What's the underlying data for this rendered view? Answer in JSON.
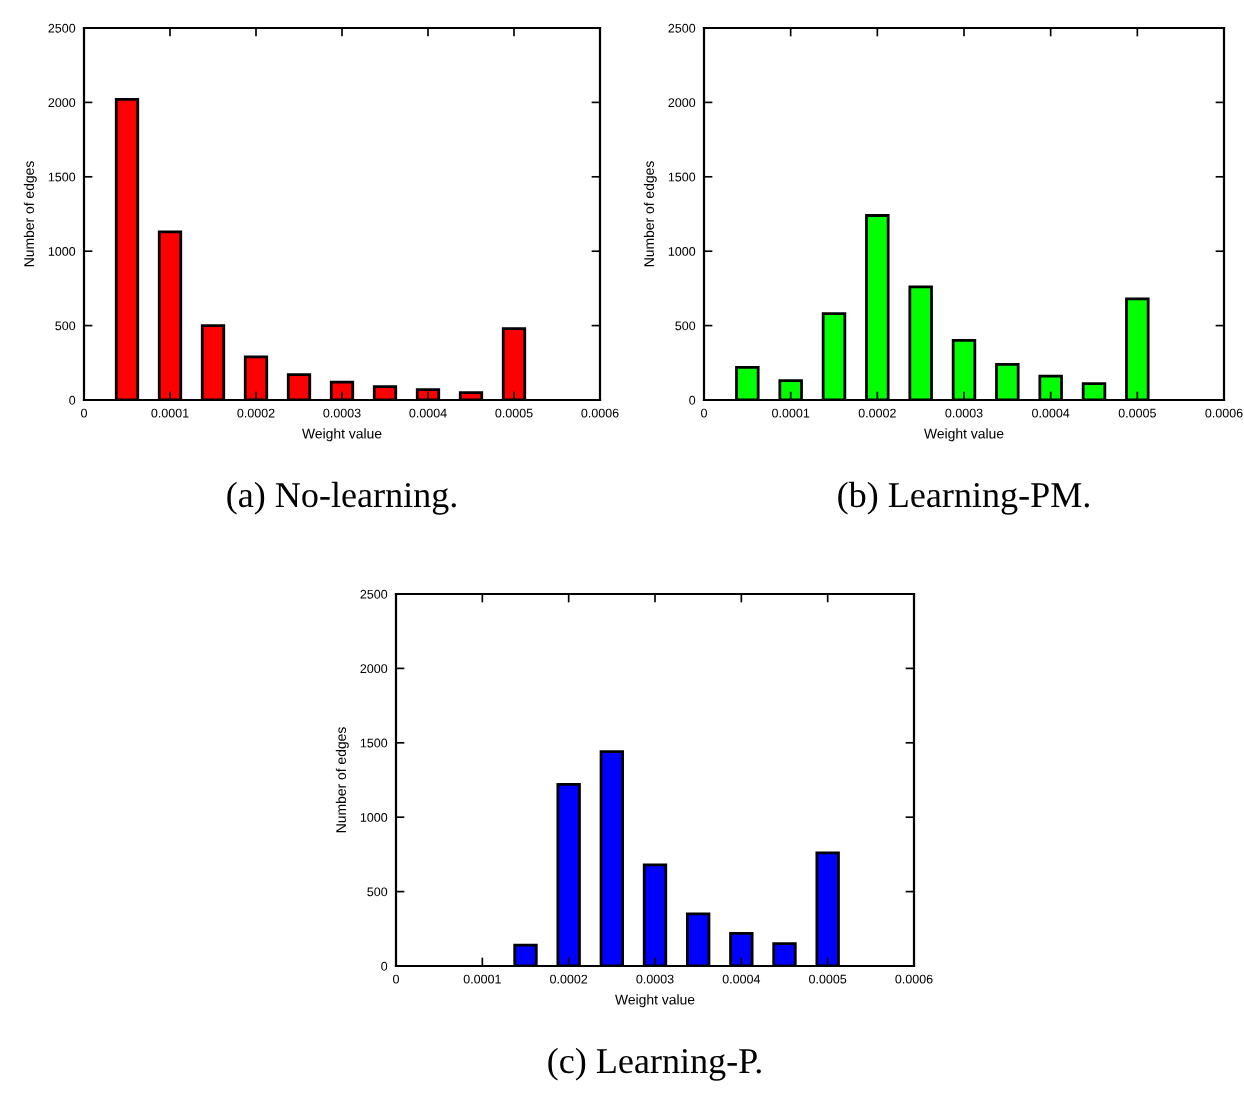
{
  "chart_data": [
    {
      "type": "bar",
      "xlabel": "Weight value",
      "ylabel": "Number of edges",
      "annotations": [
        "(a) No-learning."
      ],
      "x": [
        5e-05,
        0.0001,
        0.00015,
        0.0002,
        0.00025,
        0.0003,
        0.00035,
        0.0004,
        0.00045,
        0.0005
      ],
      "color": "#ff0000",
      "values": [
        2020,
        1130,
        500,
        290,
        170,
        120,
        90,
        70,
        50,
        480
      ],
      "xlim": [
        0,
        0.0006
      ],
      "xticks": [
        0,
        0.0001,
        0.0002,
        0.0003,
        0.0004,
        0.0005,
        0.0006
      ],
      "ylim": [
        0,
        2500
      ],
      "yticks": [
        0,
        500,
        1000,
        1500,
        2000,
        2500
      ],
      "grid": false,
      "legend": false
    },
    {
      "type": "bar",
      "xlabel": "Weight value",
      "ylabel": "Number of edges",
      "annotations": [
        "(b) Learning-PM."
      ],
      "x": [
        5e-05,
        0.0001,
        0.00015,
        0.0002,
        0.00025,
        0.0003,
        0.00035,
        0.0004,
        0.00045,
        0.0005
      ],
      "color": "#00ff00",
      "values": [
        220,
        130,
        580,
        1240,
        760,
        400,
        240,
        160,
        110,
        680
      ],
      "xlim": [
        0,
        0.0006
      ],
      "xticks": [
        0,
        0.0001,
        0.0002,
        0.0003,
        0.0004,
        0.0005,
        0.0006
      ],
      "ylim": [
        0,
        2500
      ],
      "yticks": [
        0,
        500,
        1000,
        1500,
        2000,
        2500
      ],
      "grid": false,
      "legend": false
    },
    {
      "type": "bar",
      "xlabel": "Weight value",
      "ylabel": "Number of edges",
      "annotations": [
        "(c) Learning-P."
      ],
      "x": [
        0.00015,
        0.0002,
        0.00025,
        0.0003,
        0.00035,
        0.0004,
        0.00045,
        0.0005
      ],
      "color": "#0000ff",
      "values": [
        140,
        1220,
        1440,
        680,
        350,
        220,
        150,
        760
      ],
      "xlim": [
        0,
        0.0006
      ],
      "xticks": [
        0,
        0.0001,
        0.0002,
        0.0003,
        0.0004,
        0.0005,
        0.0006
      ],
      "ylim": [
        0,
        2500
      ],
      "yticks": [
        0,
        500,
        1000,
        1500,
        2000,
        2500
      ],
      "grid": false,
      "legend": false
    }
  ]
}
